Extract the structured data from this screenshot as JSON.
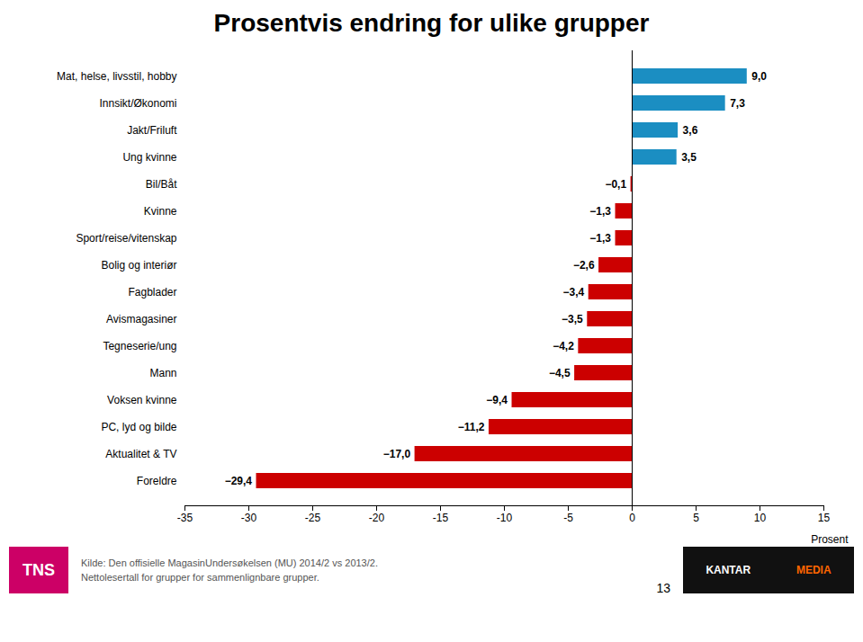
{
  "chart_data": {
    "type": "bar",
    "orientation": "horizontal",
    "title": "Prosentvis endring for ulike grupper",
    "xlabel": "Prosent",
    "categories": [
      "Mat, helse, livsstil, hobby",
      "Innsikt/Økonomi",
      "Jakt/Friluft",
      "Ung kvinne",
      "Bil/Båt",
      "Kvinne",
      "Sport/reise/vitenskap",
      "Bolig og interiør",
      "Fagblader",
      "Avismagasiner",
      "Tegneserie/ung",
      "Mann",
      "Voksen kvinne",
      "PC, lyd og bilde",
      "Aktualitet & TV",
      "Foreldre"
    ],
    "values": [
      9.0,
      7.3,
      3.6,
      3.5,
      -0.1,
      -1.3,
      -1.3,
      -2.6,
      -3.4,
      -3.5,
      -4.2,
      -4.5,
      -9.4,
      -11.2,
      -17.0,
      -29.4
    ],
    "value_labels": [
      "9,0",
      "7,3",
      "3,6",
      "3,5",
      "−0,1",
      "−1,3",
      "−1,3",
      "−2,6",
      "−3,4",
      "−3,5",
      "−4,2",
      "−4,5",
      "−9,4",
      "−11,2",
      "−17,0",
      "−29,4"
    ],
    "colors": [
      "#1b8ec2",
      "#1b8ec2",
      "#1b8ec2",
      "#1b8ec2",
      "#cc0000",
      "#cc0000",
      "#cc0000",
      "#cc0000",
      "#cc0000",
      "#cc0000",
      "#cc0000",
      "#cc0000",
      "#cc0000",
      "#cc0000",
      "#cc0000",
      "#cc0000"
    ],
    "xlim": [
      -35,
      15
    ],
    "xticks": [
      -35,
      -30,
      -25,
      -20,
      -15,
      -10,
      -5,
      0,
      5,
      10,
      15
    ],
    "grid": false,
    "data_labels": true,
    "annotations": [
      "TNS",
      "Kilde: Den offisielle MagasinUndersøkelsen (MU) 2014/2 vs 2013/2.",
      "Nettolesertall for grupper for sammenlignbare grupper.",
      "13",
      "KANTAR",
      "MEDIA"
    ]
  }
}
